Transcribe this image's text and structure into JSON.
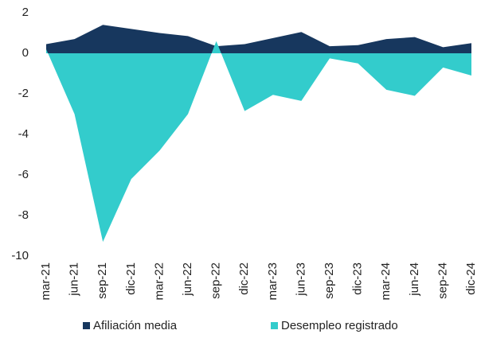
{
  "chart_data": {
    "type": "area",
    "categories": [
      "mar-21",
      "jun-21",
      "sep-21",
      "dic-21",
      "mar-22",
      "jun-22",
      "sep-22",
      "dic-22",
      "mar-23",
      "jun-23",
      "sep-23",
      "dic-23",
      "mar-24",
      "jun-24",
      "sep-24",
      "dic-24"
    ],
    "series": [
      {
        "name": "Afiliación media",
        "color": "#17375e",
        "values": [
          0.45,
          0.7,
          1.4,
          1.2,
          1.0,
          0.85,
          0.35,
          0.45,
          0.75,
          1.05,
          0.35,
          0.4,
          0.7,
          0.8,
          0.3,
          0.5
        ]
      },
      {
        "name": "Desempleo registrado",
        "color": "#33cccc",
        "values": [
          0.2,
          -3.0,
          -9.3,
          -6.2,
          -4.8,
          -3.0,
          0.6,
          -2.85,
          -2.05,
          -2.35,
          -0.25,
          -0.5,
          -1.8,
          -2.1,
          -0.7,
          -1.1
        ]
      }
    ],
    "ylim": [
      -10,
      2
    ],
    "yticks": [
      -10,
      -8,
      -6,
      -4,
      -2,
      0,
      2
    ],
    "legend": "bottom"
  }
}
